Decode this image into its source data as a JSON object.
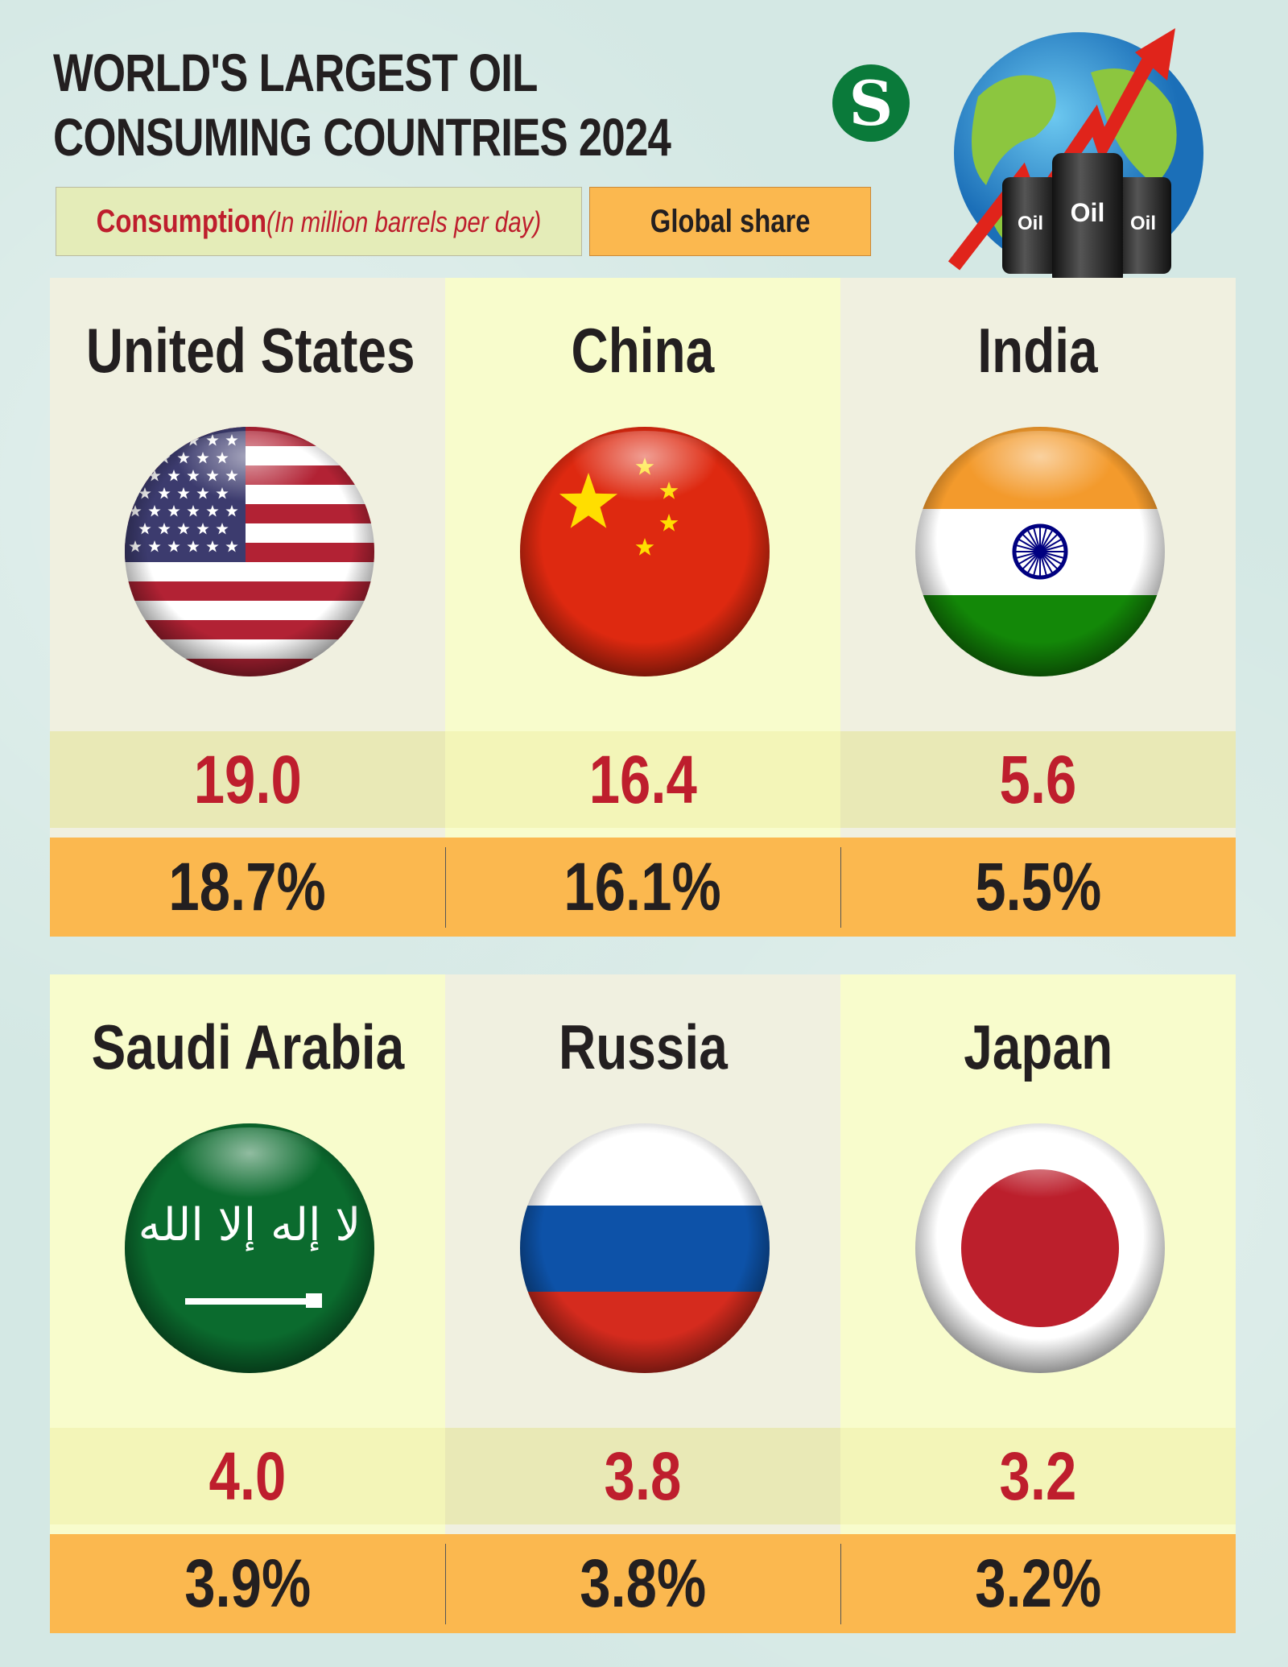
{
  "title": [
    "WORLD'S LARGEST OIL",
    "CONSUMING COUNTRIES 2024"
  ],
  "legend": {
    "consumption_label": "Consumption",
    "consumption_unit": "(In million barrels per day)",
    "share_label": "Global share"
  },
  "logo": "S",
  "illustration": {
    "barrel_labels": [
      "Oil",
      "Oil",
      "Oil"
    ]
  },
  "colors": {
    "consumption_text": "#be1e2d",
    "share_bg": "#fbb84f",
    "legend_consumption_bg": "#e4ecb8"
  },
  "countries": [
    {
      "name": "United States",
      "consumption": "19.0",
      "share": "18.7%",
      "flag": "us-flag"
    },
    {
      "name": "China",
      "consumption": "16.4",
      "share": "16.1%",
      "flag": "china-flag"
    },
    {
      "name": "India",
      "consumption": "5.6",
      "share": "5.5%",
      "flag": "india-flag"
    },
    {
      "name": "Saudi Arabia",
      "consumption": "4.0",
      "share": "3.9%",
      "flag": "saudi-flag"
    },
    {
      "name": "Russia",
      "consumption": "3.8",
      "share": "3.8%",
      "flag": "russia-flag"
    },
    {
      "name": "Japan",
      "consumption": "3.2",
      "share": "3.2%",
      "flag": "japan-flag"
    }
  ]
}
